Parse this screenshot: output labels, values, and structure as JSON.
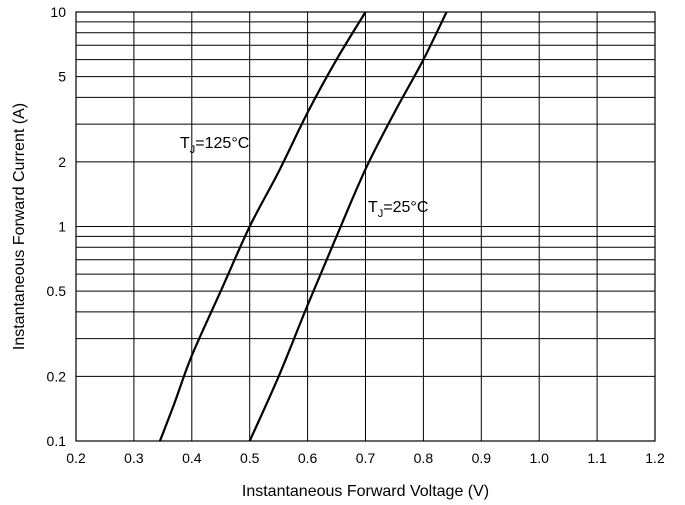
{
  "chart_data": {
    "type": "line",
    "xlabel": "Instantaneous Forward Voltage (V)",
    "ylabel": "Instantaneous Forward Current (A)",
    "xlim": [
      0.2,
      1.2
    ],
    "ylim": [
      0.1,
      10
    ],
    "yscale": "log",
    "grid": true,
    "x_ticks": [
      "0.2",
      "0.3",
      "0.4",
      "0.5",
      "0.6",
      "0.7",
      "0.8",
      "0.9",
      "1.0",
      "1.1",
      "1.2"
    ],
    "y_ticks": [
      {
        "value": 0.1,
        "label": "0.1"
      },
      {
        "value": 0.2,
        "label": "0.2"
      },
      {
        "value": 0.5,
        "label": "0.5"
      },
      {
        "value": 1,
        "label": "1"
      },
      {
        "value": 2,
        "label": "2"
      },
      {
        "value": 5,
        "label": "5"
      },
      {
        "value": 10,
        "label": "10"
      }
    ],
    "series": [
      {
        "name": "TJ=125°C",
        "label_main": "T",
        "label_sub": "J",
        "label_rest": "=125°C",
        "points": [
          [
            0.345,
            0.1
          ],
          [
            0.37,
            0.15
          ],
          [
            0.4,
            0.25
          ],
          [
            0.45,
            0.5
          ],
          [
            0.5,
            1.0
          ],
          [
            0.55,
            1.8
          ],
          [
            0.6,
            3.4
          ],
          [
            0.65,
            6.0
          ],
          [
            0.7,
            10.0
          ]
        ]
      },
      {
        "name": "TJ=25°C",
        "label_main": "T",
        "label_sub": "J",
        "label_rest": "=25°C",
        "points": [
          [
            0.5,
            0.1
          ],
          [
            0.55,
            0.2
          ],
          [
            0.6,
            0.43
          ],
          [
            0.65,
            0.9
          ],
          [
            0.7,
            1.85
          ],
          [
            0.75,
            3.4
          ],
          [
            0.8,
            6.0
          ],
          [
            0.84,
            10.0
          ]
        ]
      }
    ]
  }
}
